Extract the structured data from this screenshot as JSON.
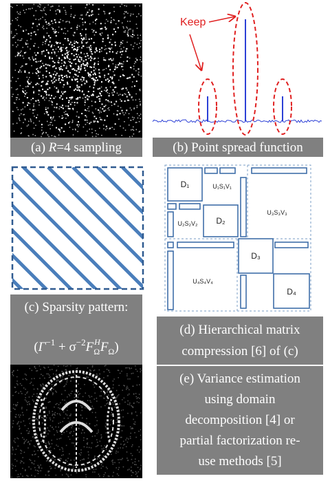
{
  "panel_a": {
    "caption": [
      "(a) ",
      "R",
      "=4 sampling"
    ]
  },
  "panel_b": {
    "caption": "(b) Point spread function",
    "annotation": "Keep"
  },
  "panel_c": {
    "caption": "(c) Sparsity pattern:",
    "formula": [
      "(",
      "Γ",
      "−1",
      " + σ",
      "−2",
      "F",
      "Ω",
      "H",
      "F",
      "Ω",
      ")"
    ]
  },
  "panel_d": {
    "caption": [
      "(d) Hierarchical matrix",
      "compression [6] of (c)"
    ],
    "blocks": {
      "d1": "D₁",
      "d2": "D₂",
      "d3": "D₃",
      "d4": "D₄",
      "u1": "U₁S₁V₁",
      "u2": "U₂S₂V₂",
      "u3": "U₃S₃V₃",
      "u4": "U₄S₄V₄"
    }
  },
  "panel_e": {
    "caption": [
      "(e) Variance estimation",
      "using domain",
      "decomposition [4] or",
      "partial factorization re-",
      "use methods [5]"
    ]
  }
}
